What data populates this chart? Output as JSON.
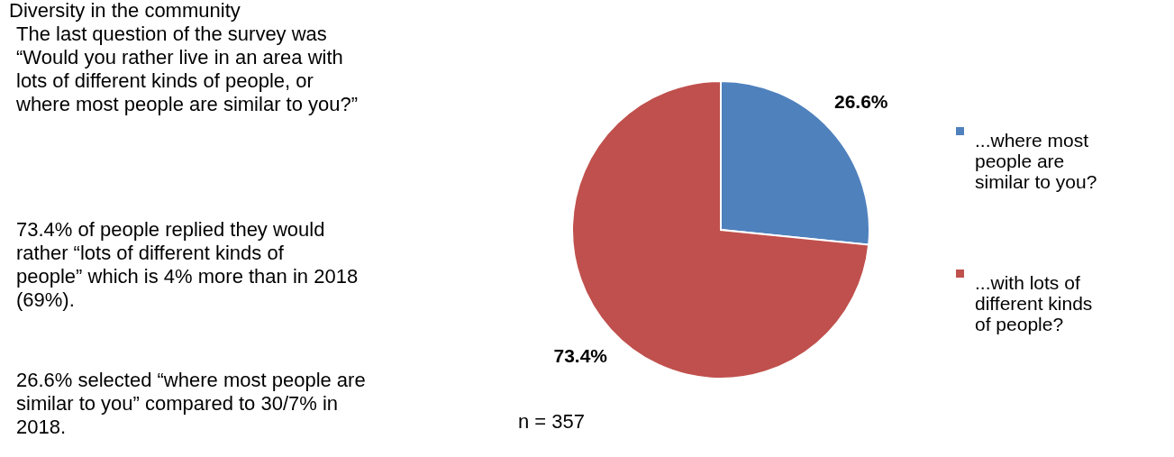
{
  "chart_data": {
    "type": "pie",
    "title": "Diversity in the community",
    "categories": [
      "...where most people are similar to you?",
      "...with lots of different kinds of people?"
    ],
    "values": [
      26.6,
      73.4
    ],
    "colors": [
      "#4f81bd",
      "#c0504d"
    ],
    "value_labels": [
      "26.6%",
      "73.4%"
    ],
    "legend": "right",
    "annotations": [
      "The last question of the survey was “Would you rather live in an area with lots of different kinds of people, or where most people are similar to you?”",
      "73.4% of people replied they would rather “lots of different kinds of people” which is 4% more than in 2018 (69%).",
      "26.6% selected “where most people are similar to you” compared to 30/7% in 2018.",
      "n = 357"
    ]
  }
}
